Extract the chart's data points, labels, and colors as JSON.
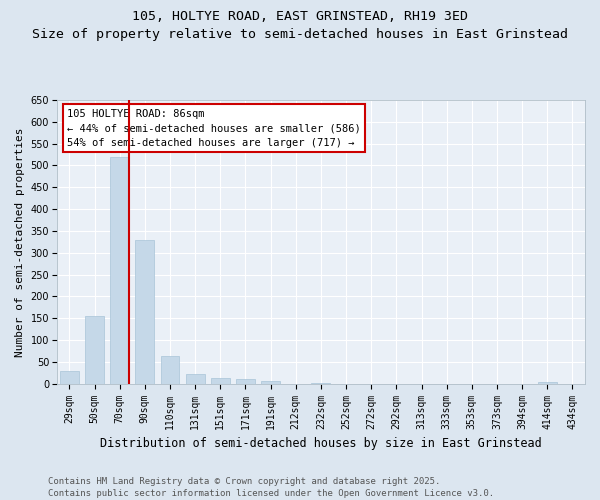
{
  "title": "105, HOLTYE ROAD, EAST GRINSTEAD, RH19 3ED",
  "subtitle": "Size of property relative to semi-detached houses in East Grinstead",
  "xlabel": "Distribution of semi-detached houses by size in East Grinstead",
  "ylabel": "Number of semi-detached properties",
  "categories": [
    "29sqm",
    "50sqm",
    "70sqm",
    "90sqm",
    "110sqm",
    "131sqm",
    "151sqm",
    "171sqm",
    "191sqm",
    "212sqm",
    "232sqm",
    "252sqm",
    "272sqm",
    "292sqm",
    "313sqm",
    "333sqm",
    "353sqm",
    "373sqm",
    "394sqm",
    "414sqm",
    "434sqm"
  ],
  "values": [
    30,
    155,
    520,
    330,
    63,
    22,
    14,
    10,
    7,
    0,
    2,
    0,
    0,
    0,
    0,
    0,
    0,
    0,
    0,
    4,
    0
  ],
  "bar_color": "#c5d8e8",
  "bar_edgecolor": "#a8c4d8",
  "annotation_line_label": "105 HOLTYE ROAD: 86sqm",
  "annotation_line1": "← 44% of semi-detached houses are smaller (586)",
  "annotation_line2": "54% of semi-detached houses are larger (717) →",
  "annotation_box_facecolor": "#ffffff",
  "annotation_box_edgecolor": "#cc0000",
  "vline_color": "#cc0000",
  "vline_xindex": 2.38,
  "ylim": [
    0,
    650
  ],
  "yticks": [
    0,
    50,
    100,
    150,
    200,
    250,
    300,
    350,
    400,
    450,
    500,
    550,
    600,
    650
  ],
  "footer_line1": "Contains HM Land Registry data © Crown copyright and database right 2025.",
  "footer_line2": "Contains public sector information licensed under the Open Government Licence v3.0.",
  "bg_color": "#dce6f0",
  "plot_bg_color": "#eaf0f7",
  "grid_color": "#ffffff",
  "title_fontsize": 9.5,
  "subtitle_fontsize": 8.5,
  "tick_fontsize": 7,
  "ylabel_fontsize": 8,
  "xlabel_fontsize": 8.5,
  "annotation_fontsize": 7.5,
  "footer_fontsize": 6.5
}
